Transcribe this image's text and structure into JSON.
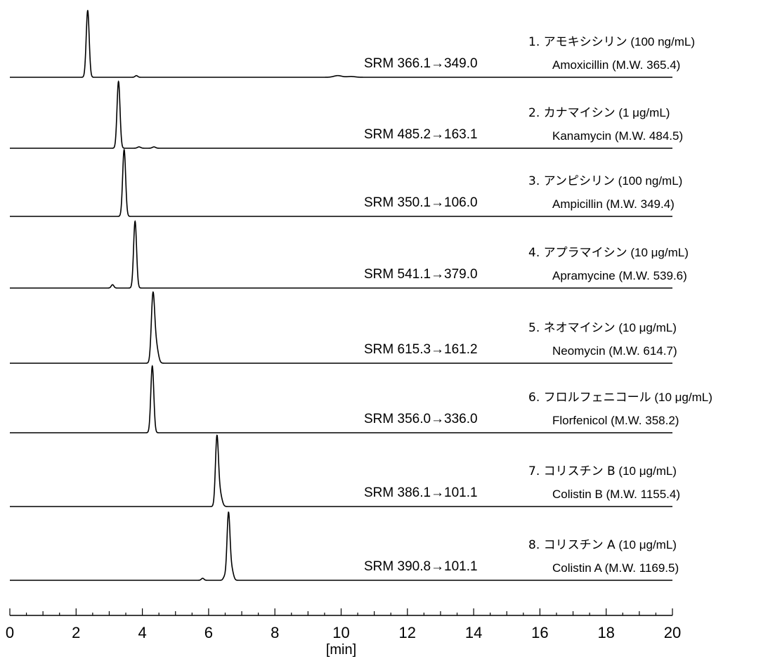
{
  "chart_data": {
    "type": "line",
    "xlabel": "[min]",
    "xlim": [
      0,
      20
    ],
    "x_ticks": [
      "0",
      "2",
      "4",
      "6",
      "8",
      "10",
      "12",
      "14",
      "16",
      "18",
      "20"
    ],
    "grid": false,
    "traces": [
      {
        "srm": "SRM 366.1→349.0",
        "jp": "1. アモキシシリン",
        "conc": "(100 ng/mL)",
        "en": "Amoxicillin (M.W. 365.4)",
        "peaks": [
          {
            "t": 2.35,
            "h": 1.0,
            "w": 0.045
          },
          {
            "t": 3.82,
            "h": 0.025,
            "w": 0.04
          },
          {
            "t": 9.9,
            "h": 0.025,
            "w": 0.12
          },
          {
            "t": 10.3,
            "h": 0.012,
            "w": 0.12
          }
        ]
      },
      {
        "srm": "SRM 485.2→163.1",
        "jp": "2. カナマイシン",
        "conc": "(1 μg/mL)",
        "en": "Kanamycin (M.W. 484.5)",
        "peaks": [
          {
            "t": 3.28,
            "h": 1.0,
            "w": 0.045
          },
          {
            "t": 3.9,
            "h": 0.02,
            "w": 0.05
          },
          {
            "t": 4.35,
            "h": 0.02,
            "w": 0.05
          }
        ]
      },
      {
        "srm": "SRM 350.1→106.0",
        "jp": "3. アンピシリン",
        "conc": "(100 ng/mL)",
        "en": "Ampicillin (M.W. 349.4)",
        "peaks": [
          {
            "t": 3.45,
            "h": 1.0,
            "w": 0.045
          }
        ]
      },
      {
        "srm": "SRM 541.1→379.0",
        "jp": "4. アプラマイシン",
        "conc": "(10 μg/mL)",
        "en": "Apramycine (M.W. 539.6)",
        "peaks": [
          {
            "t": 3.1,
            "h": 0.05,
            "w": 0.04
          },
          {
            "t": 3.78,
            "h": 1.0,
            "w": 0.045
          }
        ]
      },
      {
        "srm": "SRM 615.3→161.2",
        "jp": "5. ネオマイシン",
        "conc": "(10 μg/mL)",
        "en": "Neomycin (M.W. 614.7)",
        "peaks": [
          {
            "t": 4.32,
            "h": 1.0,
            "w": 0.05
          },
          {
            "t": 4.42,
            "h": 0.25,
            "w": 0.06
          }
        ]
      },
      {
        "srm": "SRM 356.0→336.0",
        "jp": "6. フロルフェニコール",
        "conc": "(10 μg/mL)",
        "en": "Florfenicol (M.W. 358.2)",
        "peaks": [
          {
            "t": 4.3,
            "h": 1.0,
            "w": 0.045
          }
        ]
      },
      {
        "srm": "SRM 386.1→101.1",
        "jp": "7. コリスチン B",
        "conc": "(10 μg/mL)",
        "en": "Colistin B (M.W. 1155.4)",
        "peaks": [
          {
            "t": 6.25,
            "h": 1.0,
            "w": 0.045
          },
          {
            "t": 6.34,
            "h": 0.2,
            "w": 0.06
          }
        ]
      },
      {
        "srm": "SRM 390.8→101.1",
        "jp": "8. コリスチン A",
        "conc": "(10 μg/mL)",
        "en": "Colistin A (M.W. 1169.5)",
        "peaks": [
          {
            "t": 5.82,
            "h": 0.03,
            "w": 0.04
          },
          {
            "t": 6.48,
            "h": 0.05,
            "w": 0.04
          },
          {
            "t": 6.6,
            "h": 1.0,
            "w": 0.045
          },
          {
            "t": 6.7,
            "h": 0.15,
            "w": 0.05
          }
        ]
      }
    ]
  }
}
